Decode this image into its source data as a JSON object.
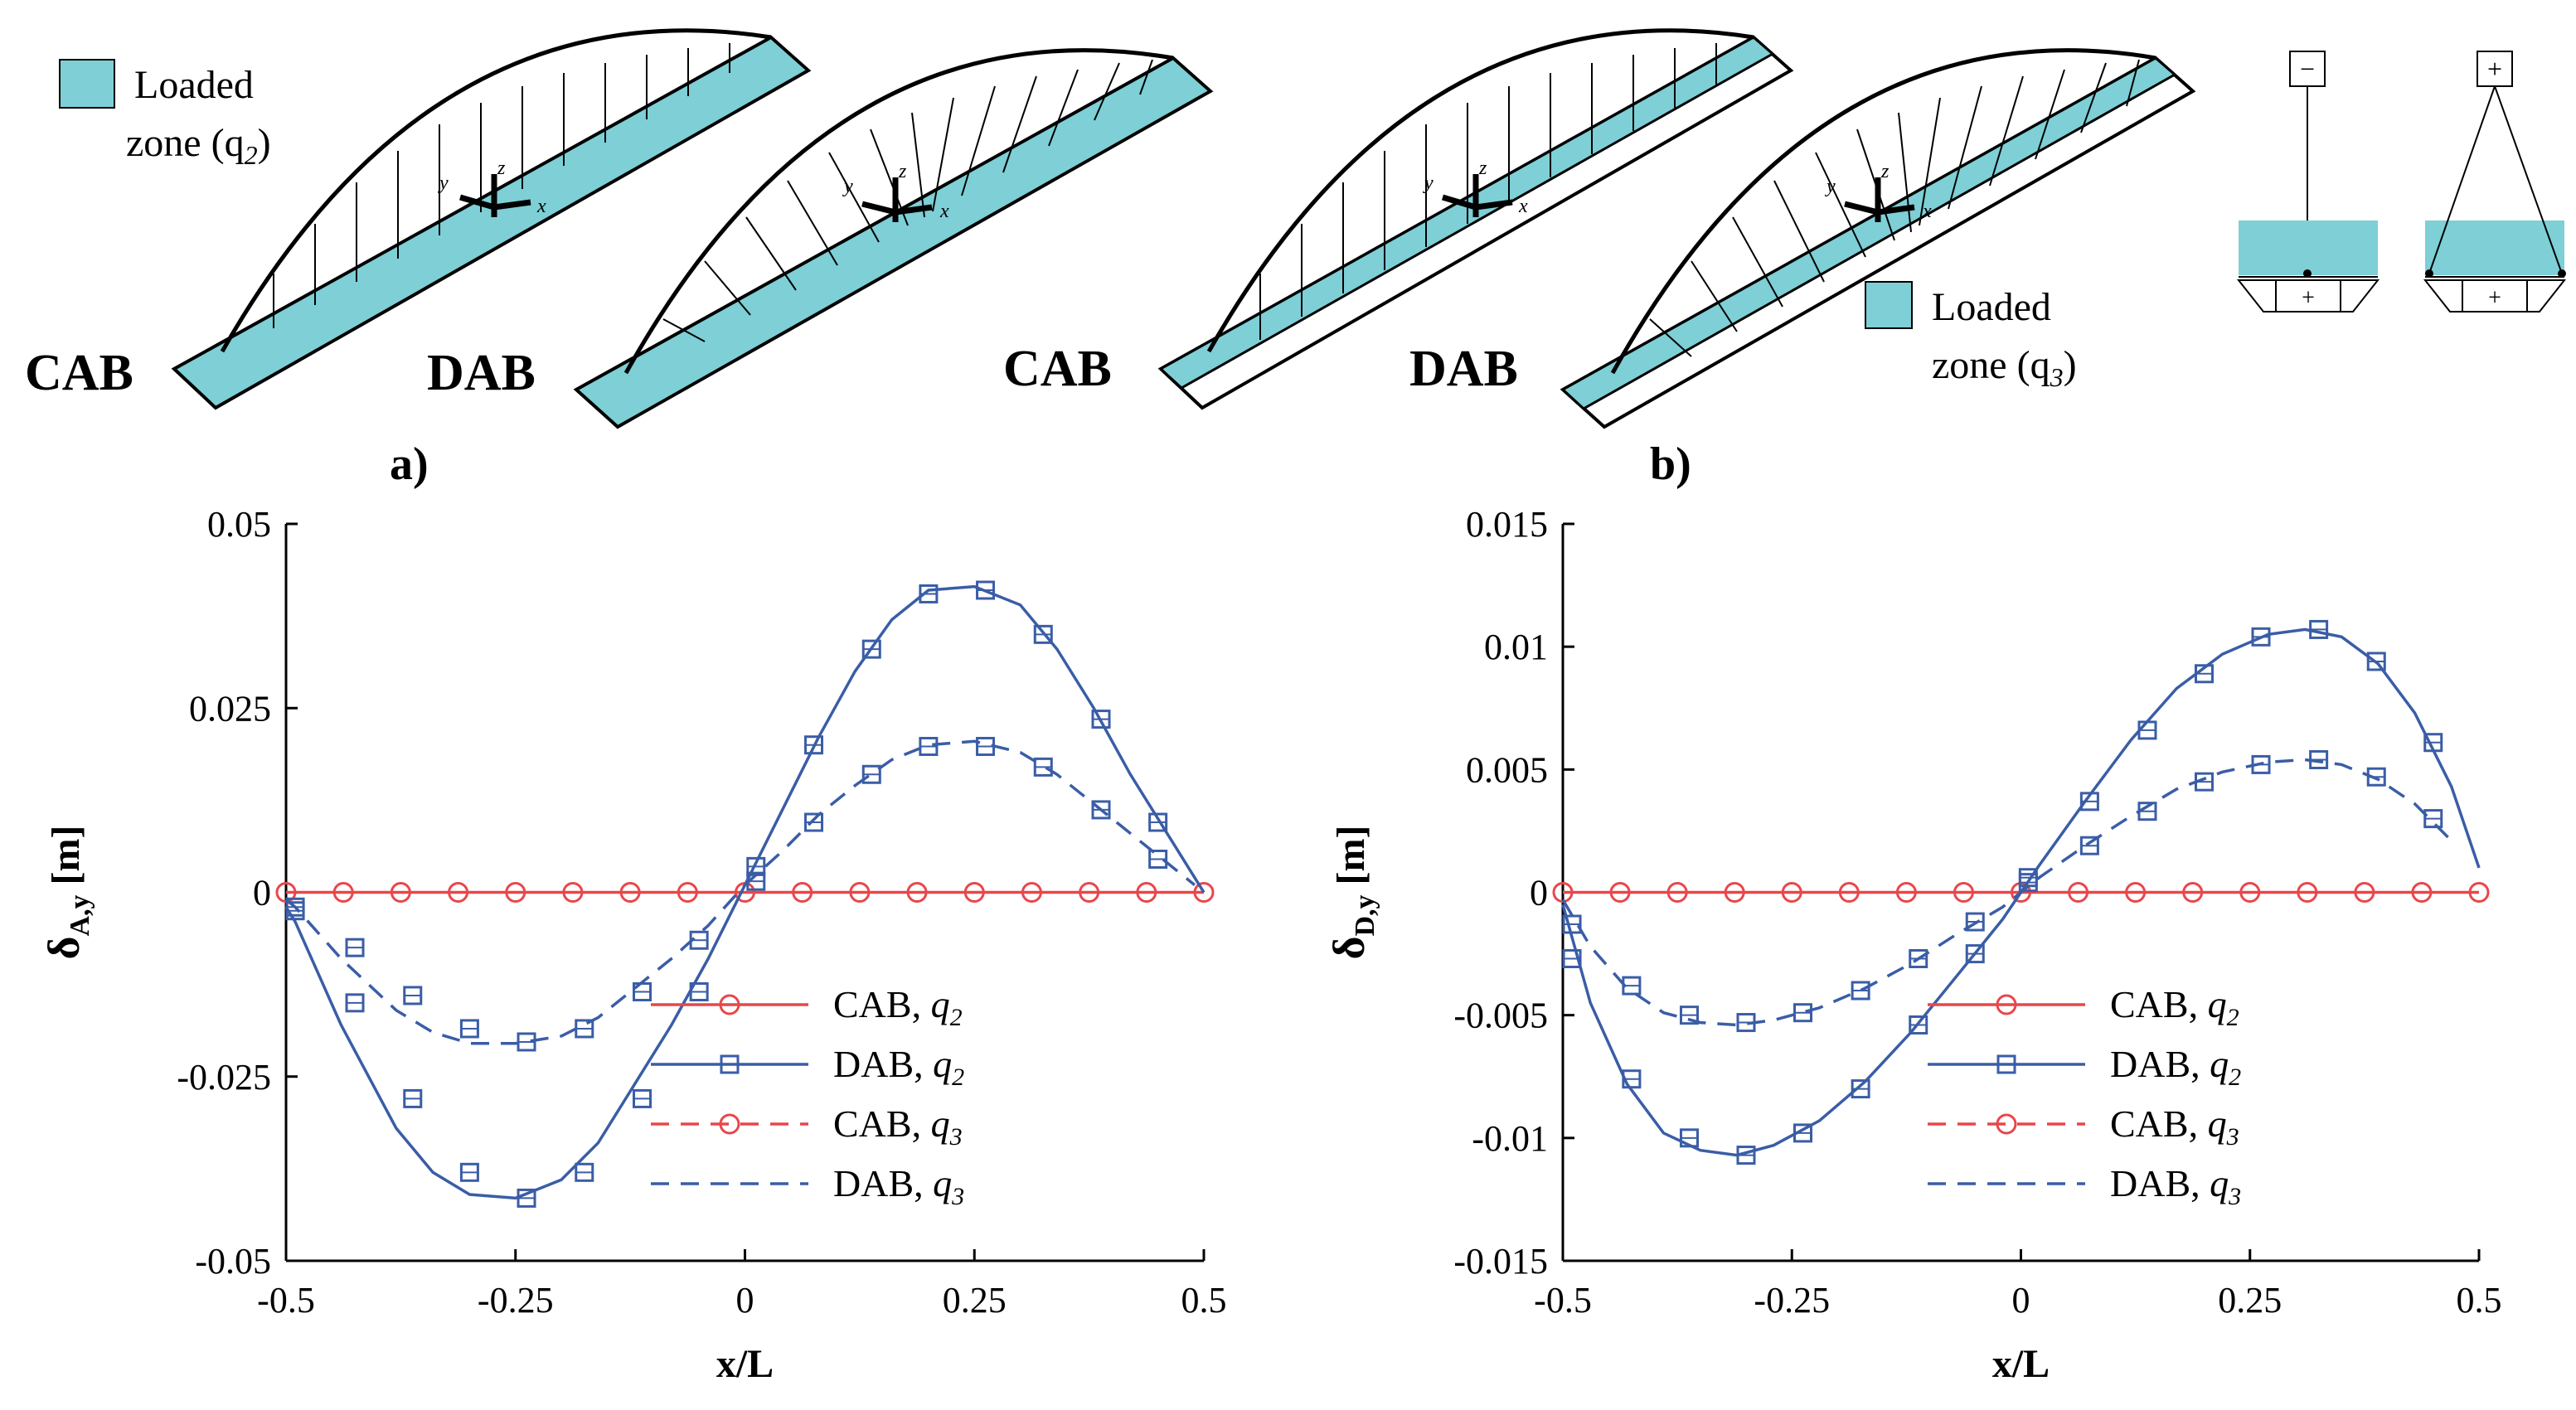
{
  "figure": {
    "panel_a": "a)",
    "panel_b": "b)",
    "bridge_labels": [
      "CAB",
      "DAB",
      "CAB",
      "DAB"
    ],
    "zone_q2": {
      "line1": "Loaded",
      "line2": "zone (q",
      "sub": "2",
      "close": ")"
    },
    "zone_q3": {
      "line1": "Loaded",
      "line2": "zone (q",
      "sub": "3",
      "close": ")"
    },
    "axis_letters": {
      "x": "x",
      "y": "y",
      "z": "z"
    },
    "section_symbols": {
      "top_left": "−",
      "top_right": "+",
      "bottom": "+"
    },
    "colors": {
      "loaded": "#7ecfd6",
      "red": "#e8474b",
      "blue": "#3a5da6"
    }
  },
  "chart_data": [
    {
      "type": "line",
      "panel": "a",
      "xlabel": "x/L",
      "ylabel_main": "δ",
      "ylabel_sub": "A,y",
      "ylabel_unit": " [m]",
      "xlim": [
        -0.5,
        0.5
      ],
      "ylim": [
        -0.05,
        0.05
      ],
      "xticks": [
        -0.5,
        -0.25,
        0,
        0.25,
        0.5
      ],
      "xtick_labels": [
        "-0.5",
        "-0.25",
        "0",
        "0.25",
        "0.5"
      ],
      "yticks": [
        -0.05,
        -0.025,
        0,
        0.025,
        0.05
      ],
      "ytick_labels": [
        "-0.05",
        "-0.025",
        "0",
        "0.025",
        "0.05"
      ],
      "legend": [
        {
          "name": "CAB, ",
          "q": "q",
          "sub": "2",
          "color": "#e8474b",
          "dash": "solid",
          "marker": "circle"
        },
        {
          "name": "DAB, ",
          "q": "q",
          "sub": "2",
          "color": "#3a5da6",
          "dash": "solid",
          "marker": "square"
        },
        {
          "name": "CAB, ",
          "q": "q",
          "sub": "3",
          "color": "#e8474b",
          "dash": "dashed",
          "marker": "circle"
        },
        {
          "name": "DAB, ",
          "q": "q",
          "sub": "3",
          "color": "#3a5da6",
          "dash": "dashed",
          "marker": "none"
        }
      ],
      "series": [
        {
          "name": "CAB, q2",
          "color": "#e8474b",
          "dash": "solid",
          "marker": "circle",
          "x": [
            -0.5,
            -0.4375,
            -0.375,
            -0.3125,
            -0.25,
            -0.1875,
            -0.125,
            -0.0625,
            0,
            0.0625,
            0.125,
            0.1875,
            0.25,
            0.3125,
            0.375,
            0.4375,
            0.5
          ],
          "y": [
            0,
            0,
            0,
            0,
            0,
            0,
            0,
            0,
            0,
            0,
            0,
            0,
            0,
            0,
            0,
            0,
            0
          ]
        },
        {
          "name": "DAB, q2",
          "color": "#3a5da6",
          "dash": "solid",
          "marker": "square",
          "x": [
            -0.5,
            -0.49,
            -0.44,
            -0.38,
            -0.34,
            -0.3,
            -0.25,
            -0.2,
            -0.16,
            -0.12,
            -0.08,
            -0.04,
            0,
            0.04,
            0.08,
            0.12,
            0.16,
            0.2,
            0.25,
            0.3,
            0.34,
            0.38,
            0.42,
            0.46,
            0.49,
            0.5
          ],
          "y": [
            -0.002,
            -0.004,
            -0.018,
            -0.032,
            -0.038,
            -0.041,
            -0.0415,
            -0.039,
            -0.034,
            -0.026,
            -0.018,
            -0.009,
            0.001,
            0.011,
            0.021,
            0.03,
            0.037,
            0.041,
            0.0415,
            0.039,
            0.033,
            0.025,
            0.016,
            0.008,
            0.002,
            0
          ]
        },
        {
          "name": "DAB, q2 markers",
          "color": "#3a5da6",
          "dash": "none",
          "marker": "square",
          "x": [
            -0.49,
            -0.425,
            -0.362,
            -0.3,
            -0.238,
            -0.175,
            -0.112,
            -0.05,
            0.012,
            0.075,
            0.138,
            0.2,
            0.262,
            0.325,
            0.388,
            0.45
          ],
          "y": [
            -0.0025,
            -0.015,
            -0.028,
            -0.038,
            -0.0415,
            -0.038,
            -0.028,
            -0.0135,
            0.0015,
            0.02,
            0.033,
            0.0405,
            0.041,
            0.035,
            0.0235,
            0.0095
          ]
        },
        {
          "name": "DAB, q3",
          "color": "#3a5da6",
          "dash": "dashed",
          "marker": "square",
          "x": [
            -0.5,
            -0.49,
            -0.44,
            -0.38,
            -0.34,
            -0.3,
            -0.25,
            -0.2,
            -0.16,
            -0.12,
            -0.08,
            -0.04,
            0,
            0.04,
            0.08,
            0.12,
            0.16,
            0.2,
            0.25,
            0.3,
            0.34,
            0.38,
            0.42,
            0.46,
            0.49
          ],
          "y": [
            -0.001,
            -0.002,
            -0.009,
            -0.016,
            -0.019,
            -0.0205,
            -0.0205,
            -0.0195,
            -0.017,
            -0.013,
            -0.009,
            -0.0045,
            0.001,
            0.0055,
            0.0105,
            0.0145,
            0.018,
            0.02,
            0.0205,
            0.019,
            0.016,
            0.012,
            0.008,
            0.004,
            0.001
          ]
        },
        {
          "name": "DAB, q3 markers",
          "color": "#3a5da6",
          "dash": "none",
          "marker": "square",
          "x": [
            -0.49,
            -0.425,
            -0.362,
            -0.3,
            -0.238,
            -0.175,
            -0.112,
            -0.05,
            0.012,
            0.075,
            0.138,
            0.2,
            0.262,
            0.325,
            0.388,
            0.45
          ],
          "y": [
            -0.002,
            -0.0075,
            -0.014,
            -0.0185,
            -0.0203,
            -0.0185,
            -0.0135,
            -0.0065,
            0.0035,
            0.0095,
            0.016,
            0.0198,
            0.0198,
            0.017,
            0.0112,
            0.0045
          ]
        }
      ]
    },
    {
      "type": "line",
      "panel": "b",
      "xlabel": "x/L",
      "ylabel_main": "δ",
      "ylabel_sub": "D,y",
      "ylabel_unit": " [m]",
      "xlim": [
        -0.5,
        0.5
      ],
      "ylim": [
        -0.015,
        0.015
      ],
      "xticks": [
        -0.5,
        -0.25,
        0,
        0.25,
        0.5
      ],
      "xtick_labels": [
        "-0.5",
        "-0.25",
        "0",
        "0.25",
        "0.5"
      ],
      "yticks": [
        -0.015,
        -0.01,
        -0.005,
        0,
        0.005,
        0.01,
        0.015
      ],
      "ytick_labels": [
        "-0.015",
        "-0.01",
        "-0.005",
        "0",
        "0.005",
        "0.01",
        "0.015"
      ],
      "legend": [
        {
          "name": "CAB, ",
          "q": "q",
          "sub": "2",
          "color": "#e8474b",
          "dash": "solid",
          "marker": "circle"
        },
        {
          "name": "DAB, ",
          "q": "q",
          "sub": "2",
          "color": "#3a5da6",
          "dash": "solid",
          "marker": "square"
        },
        {
          "name": "CAB, ",
          "q": "q",
          "sub": "3",
          "color": "#e8474b",
          "dash": "dashed",
          "marker": "circle"
        },
        {
          "name": "DAB, ",
          "q": "q",
          "sub": "3",
          "color": "#3a5da6",
          "dash": "dashed",
          "marker": "none"
        }
      ],
      "series": [
        {
          "name": "CAB, q2",
          "color": "#e8474b",
          "dash": "solid",
          "marker": "circle",
          "x": [
            -0.5,
            -0.4375,
            -0.375,
            -0.3125,
            -0.25,
            -0.1875,
            -0.125,
            -0.0625,
            0,
            0.0625,
            0.125,
            0.1875,
            0.25,
            0.3125,
            0.375,
            0.4375,
            0.5
          ],
          "y": [
            0,
            0,
            0,
            0,
            0,
            0,
            0,
            0,
            0,
            0,
            0,
            0,
            0,
            0,
            0,
            0,
            0
          ]
        },
        {
          "name": "DAB, q2",
          "color": "#3a5da6",
          "dash": "solid",
          "marker": "square",
          "x": [
            -0.5,
            -0.47,
            -0.43,
            -0.39,
            -0.35,
            -0.31,
            -0.27,
            -0.22,
            -0.17,
            -0.12,
            -0.07,
            -0.02,
            0.02,
            0.07,
            0.12,
            0.17,
            0.22,
            0.27,
            0.31,
            0.35,
            0.39,
            0.43,
            0.47,
            0.5
          ],
          "y": [
            -0.0005,
            -0.0045,
            -0.0078,
            -0.0098,
            -0.0105,
            -0.0107,
            -0.0103,
            -0.0093,
            -0.0077,
            -0.0057,
            -0.0034,
            -0.0011,
            0.0011,
            0.0037,
            0.0062,
            0.0083,
            0.0097,
            0.0105,
            0.0107,
            0.0104,
            0.0093,
            0.0073,
            0.0043,
            0.001
          ]
        },
        {
          "name": "DAB, q2 markers",
          "color": "#3a5da6",
          "dash": "none",
          "marker": "square",
          "x": [
            -0.49,
            -0.425,
            -0.362,
            -0.3,
            -0.238,
            -0.175,
            -0.112,
            -0.05,
            0.008,
            0.075,
            0.138,
            0.2,
            0.262,
            0.325,
            0.388,
            0.45
          ],
          "y": [
            -0.0027,
            -0.0076,
            -0.01,
            -0.0107,
            -0.0098,
            -0.008,
            -0.0054,
            -0.0025,
            0.0004,
            0.0037,
            0.0066,
            0.0089,
            0.0104,
            0.0107,
            0.0094,
            0.0061
          ]
        },
        {
          "name": "DAB, q3",
          "color": "#3a5da6",
          "dash": "dashed",
          "marker": "square",
          "x": [
            -0.5,
            -0.47,
            -0.43,
            -0.39,
            -0.35,
            -0.31,
            -0.27,
            -0.22,
            -0.17,
            -0.12,
            -0.07,
            -0.02,
            0.02,
            0.07,
            0.12,
            0.17,
            0.22,
            0.27,
            0.31,
            0.35,
            0.39,
            0.43,
            0.47
          ],
          "y": [
            -0.0003,
            -0.0022,
            -0.0039,
            -0.0049,
            -0.0053,
            -0.0054,
            -0.0052,
            -0.0047,
            -0.0039,
            -0.0029,
            -0.0017,
            -0.0006,
            0.0006,
            0.0019,
            0.0031,
            0.0042,
            0.0049,
            0.0053,
            0.0054,
            0.0052,
            0.0046,
            0.0036,
            0.0021
          ]
        },
        {
          "name": "DAB, q3 markers",
          "color": "#3a5da6",
          "dash": "none",
          "marker": "square",
          "x": [
            -0.49,
            -0.425,
            -0.362,
            -0.3,
            -0.238,
            -0.175,
            -0.112,
            -0.05,
            0.008,
            0.075,
            0.138,
            0.2,
            0.262,
            0.325,
            0.388,
            0.45
          ],
          "y": [
            -0.0013,
            -0.0038,
            -0.005,
            -0.0053,
            -0.0049,
            -0.004,
            -0.0027,
            -0.0012,
            0.0006,
            0.0019,
            0.0033,
            0.0045,
            0.0052,
            0.0054,
            0.0047,
            0.003
          ]
        }
      ]
    }
  ]
}
